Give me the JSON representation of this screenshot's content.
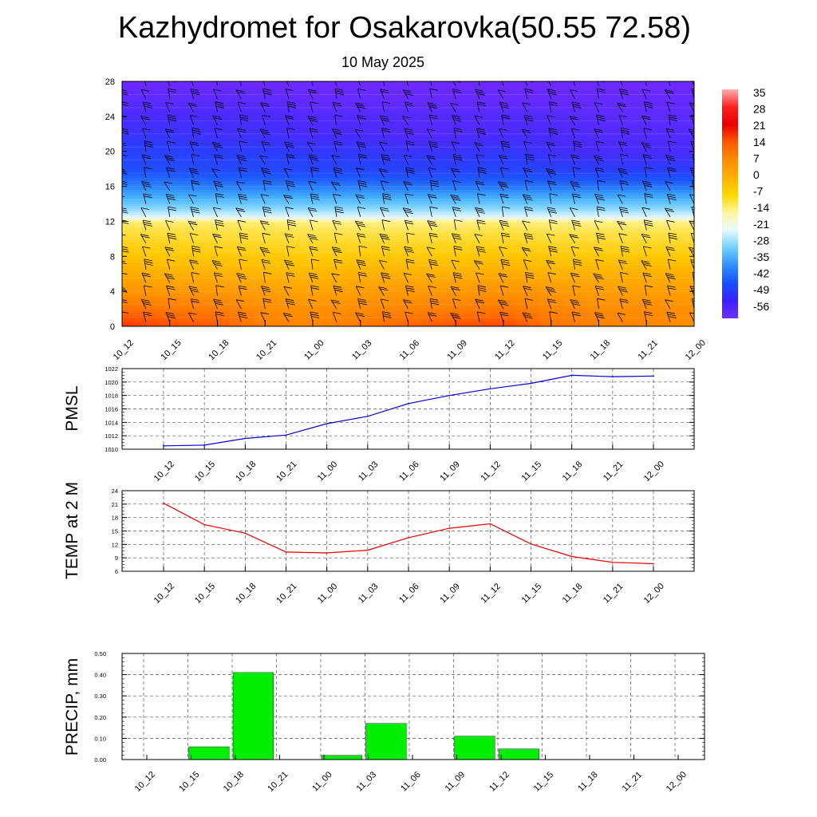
{
  "header": {
    "title": "Kazhydromet for Osakarovka(50.55 72.58)",
    "subtitle": "10 May 2025"
  },
  "colors": {
    "pmsl_line": "#0000dd",
    "temp_line": "#ee0000",
    "precip_bar": "#00ee00"
  },
  "time_labels": [
    "10_12",
    "10_15",
    "10_18",
    "10_21",
    "11_00",
    "11_03",
    "11_06",
    "11_09",
    "11_12",
    "11_15",
    "11_18",
    "11_21",
    "12_00"
  ],
  "chart_data": [
    {
      "type": "heatmap",
      "yticks": [
        "0",
        "4",
        "8",
        "12",
        "16",
        "20",
        "24",
        "28"
      ],
      "ylim": [
        0,
        28
      ],
      "xtick_labels": [
        "10_12",
        "10_15",
        "10_18",
        "10_21",
        "11_00",
        "11_03",
        "11_06",
        "11_09",
        "11_12",
        "11_15",
        "11_18",
        "11_21",
        "12_00"
      ],
      "colorbar_labels": [
        "35",
        "28",
        "21",
        "14",
        "7",
        "0",
        "-7",
        "-14",
        "-21",
        "-28",
        "-35",
        "-42",
        "-49",
        "-56"
      ],
      "colorbar_colors": [
        "#ffb0b0",
        "#ff2020",
        "#e60000",
        "#ff5a00",
        "#ff8c00",
        "#ffb000",
        "#ffd800",
        "#fff7a0",
        "#e8f8ff",
        "#70d0ff",
        "#3090ff",
        "#1850ff",
        "#3a20ff",
        "#7030ff"
      ],
      "temperature_field_c": {
        "levels": [
          0,
          2,
          4,
          6,
          8,
          10,
          11.8,
          12.5,
          14,
          16,
          18,
          20,
          22,
          24,
          26,
          28
        ],
        "times": [
          "10_12",
          "10_15",
          "10_18",
          "10_21",
          "11_00",
          "11_03",
          "11_06",
          "11_09",
          "11_12",
          "11_15",
          "11_18",
          "11_21",
          "12_00"
        ],
        "values": [
          [
            19,
            16,
            15,
            10,
            9,
            11,
            14,
            16,
            17,
            12,
            10,
            9,
            8
          ],
          [
            12,
            11,
            10,
            8,
            7,
            8,
            9,
            10,
            11,
            9,
            8,
            8,
            7
          ],
          [
            7,
            6,
            6,
            5,
            4,
            5,
            6,
            6,
            7,
            6,
            5,
            5,
            5
          ],
          [
            3,
            2,
            2,
            1,
            1,
            2,
            2,
            2,
            3,
            2,
            2,
            2,
            2
          ],
          [
            -1,
            -2,
            -2,
            -2,
            -3,
            -2,
            -2,
            -2,
            -1,
            -2,
            -2,
            -2,
            -2
          ],
          [
            -5,
            -5,
            -6,
            -6,
            -6,
            -6,
            -6,
            -6,
            -5,
            -6,
            -6,
            -6,
            -6
          ],
          [
            -9,
            -9,
            -9,
            -9,
            -10,
            -10,
            -10,
            -10,
            -9,
            -10,
            -10,
            -10,
            -10
          ],
          [
            -15,
            -15,
            -15,
            -15,
            -15,
            -15,
            -15,
            -15,
            -15,
            -15,
            -15,
            -15,
            -15
          ],
          [
            -24,
            -24,
            -24,
            -24,
            -24,
            -24,
            -24,
            -24,
            -24,
            -24,
            -24,
            -24,
            -24
          ],
          [
            -36,
            -36,
            -37,
            -37,
            -37,
            -37,
            -38,
            -38,
            -38,
            -38,
            -38,
            -38,
            -38
          ],
          [
            -44,
            -44,
            -45,
            -45,
            -46,
            -46,
            -47,
            -47,
            -46,
            -47,
            -48,
            -48,
            -48
          ],
          [
            -47,
            -47,
            -48,
            -48,
            -49,
            -49,
            -50,
            -50,
            -49,
            -51,
            -52,
            -52,
            -52
          ],
          [
            -50,
            -50,
            -51,
            -51,
            -52,
            -52,
            -53,
            -53,
            -52,
            -52,
            -53,
            -53,
            -53
          ],
          [
            -52,
            -52,
            -52,
            -52,
            -53,
            -53,
            -53,
            -53,
            -53,
            -53,
            -54,
            -54,
            -54
          ],
          [
            -54,
            -54,
            -54,
            -54,
            -55,
            -55,
            -55,
            -55,
            -55,
            -55,
            -55,
            -55,
            -55
          ],
          [
            -56,
            -56,
            -56,
            -56,
            -56,
            -56,
            -56,
            -56,
            -56,
            -56,
            -56,
            -56,
            -56
          ]
        ]
      }
    },
    {
      "type": "line",
      "ylabel": "PMSL",
      "ylim": [
        1010,
        1022
      ],
      "yticks": [
        "1010",
        "1012",
        "1014",
        "1016",
        "1018",
        "1020",
        "1022"
      ],
      "x": [
        "10_12",
        "10_15",
        "10_18",
        "10_21",
        "11_00",
        "11_03",
        "11_06",
        "11_09",
        "11_12",
        "11_15",
        "11_18",
        "11_21",
        "12_00"
      ],
      "values": [
        1010.5,
        1010.6,
        1011.6,
        1012.1,
        1013.8,
        1014.9,
        1016.8,
        1018.0,
        1019.0,
        1019.8,
        1021.0,
        1020.8,
        1020.9
      ]
    },
    {
      "type": "line",
      "ylabel": "TEMP at 2 M",
      "ylim": [
        6,
        24
      ],
      "yticks": [
        "6",
        "9",
        "12",
        "15",
        "18",
        "21",
        "24"
      ],
      "x": [
        "10_12",
        "10_15",
        "10_18",
        "10_21",
        "11_00",
        "11_03",
        "11_06",
        "11_09",
        "11_12",
        "11_15",
        "11_18",
        "11_21",
        "12_00"
      ],
      "values": [
        21.2,
        16.4,
        14.5,
        10.3,
        10.1,
        10.7,
        13.5,
        15.6,
        16.6,
        12.1,
        9.3,
        8.0,
        7.7
      ]
    },
    {
      "type": "bar",
      "ylabel": "PRECIP, mm",
      "ylim": [
        0,
        0.5
      ],
      "yticks": [
        "0.00",
        "0.10",
        "0.20",
        "0.30",
        "0.40",
        "0.50"
      ],
      "categories": [
        "10_12",
        "10_15",
        "10_18",
        "10_21",
        "11_00",
        "11_03",
        "11_06",
        "11_09",
        "11_12",
        "11_15",
        "11_18",
        "11_21",
        "12_00"
      ],
      "values": [
        0,
        0.06,
        0.41,
        0,
        0.02,
        0.17,
        0,
        0.11,
        0.05,
        0,
        0,
        0,
        0
      ]
    }
  ]
}
